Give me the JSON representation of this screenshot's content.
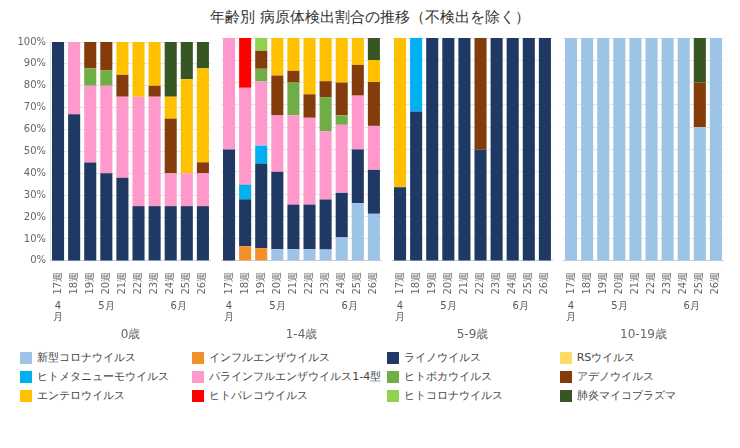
{
  "title": "年齢別 病原体検出割合の推移（不検出を除く）",
  "legend": "bottom",
  "chart_data": [
    {
      "type": "bar",
      "stacked": true,
      "grid": true,
      "x_label": "0歳",
      "categories": [
        "17週",
        "18週",
        "19週",
        "20週",
        "21週",
        "22週",
        "23週",
        "24週",
        "25週",
        "26週"
      ],
      "annotations": [
        {
          "text": "4\n月",
          "x": "17週"
        },
        {
          "text": "5月",
          "x": [
            "18週",
            "22週"
          ]
        },
        {
          "text": "6月",
          "x": [
            "23週",
            "26週"
          ]
        }
      ],
      "ylim": [
        0,
        100
      ],
      "yticks": [
        {
          "value": 0,
          "label": "0%"
        },
        {
          "value": 10,
          "label": "10%"
        },
        {
          "value": 20,
          "label": "20%"
        },
        {
          "value": 30,
          "label": "30%"
        },
        {
          "value": 40,
          "label": "40%"
        },
        {
          "value": 50,
          "label": "50%"
        },
        {
          "value": 60,
          "label": "60%"
        },
        {
          "value": 70,
          "label": "70%"
        },
        {
          "value": 80,
          "label": "80%"
        },
        {
          "value": 90,
          "label": "90%"
        },
        {
          "value": 100,
          "label": "100%"
        }
      ],
      "series": [
        {
          "name": "新型コロナウイルス",
          "color": "#9dc3e6",
          "values": [
            0,
            0,
            0,
            0,
            0,
            0,
            0,
            0,
            0,
            0
          ]
        },
        {
          "name": "インフルエンザウイルス",
          "color": "#f4902a",
          "values": [
            0,
            0,
            0,
            0,
            0,
            0,
            0,
            0,
            0,
            0
          ]
        },
        {
          "name": "ライノウイルス",
          "color": "#1f3864",
          "values": [
            100,
            67,
            45,
            40,
            38,
            25,
            25,
            25,
            25,
            25
          ]
        },
        {
          "name": "RSウイルス",
          "color": "#ffd966",
          "values": [
            0,
            0,
            0,
            0,
            0,
            0,
            0,
            0,
            0,
            0
          ]
        },
        {
          "name": "ヒトメタニューモウイルス",
          "color": "#00b0f0",
          "values": [
            0,
            0,
            0,
            0,
            0,
            0,
            0,
            0,
            0,
            0
          ]
        },
        {
          "name": "パラインフルエンザウイルス1-4型",
          "color": "#ff99cc",
          "values": [
            0,
            33,
            35,
            40,
            37,
            50,
            50,
            15,
            15,
            15
          ]
        },
        {
          "name": "ヒトボカウイルス",
          "color": "#70ad47",
          "values": [
            0,
            0,
            8,
            7,
            0,
            0,
            0,
            0,
            0,
            0
          ]
        },
        {
          "name": "アデノウイルス",
          "color": "#843c0c",
          "values": [
            0,
            0,
            12,
            13,
            10,
            0,
            5,
            25,
            0,
            5
          ]
        },
        {
          "name": "エンテロウイルス",
          "color": "#ffc000",
          "values": [
            0,
            0,
            0,
            0,
            15,
            25,
            20,
            10,
            43,
            43
          ]
        },
        {
          "name": "ヒトパレコウイルス",
          "color": "#ff0000",
          "values": [
            0,
            0,
            0,
            0,
            0,
            0,
            0,
            0,
            0,
            0
          ]
        },
        {
          "name": "ヒトコロナウイルス",
          "color": "#92d050",
          "values": [
            0,
            0,
            0,
            0,
            0,
            0,
            0,
            0,
            0,
            0
          ]
        },
        {
          "name": "肺炎マイコプラズマ",
          "color": "#375623",
          "values": [
            0,
            0,
            0,
            0,
            0,
            0,
            0,
            25,
            17,
            12
          ]
        }
      ]
    },
    {
      "type": "bar",
      "stacked": true,
      "grid": true,
      "x_label": "1-4歳",
      "tick_labels": "x",
      "categories": [
        "17週",
        "18週",
        "19週",
        "20週",
        "21週",
        "22週",
        "23週",
        "24週",
        "25週",
        "26週"
      ],
      "annotations": [
        {
          "text": "4\n月",
          "x": "17週"
        },
        {
          "text": "5月",
          "x": [
            "18週",
            "22週"
          ]
        },
        {
          "text": "6月",
          "x": [
            "23週",
            "26週"
          ]
        }
      ],
      "ylim": [
        0,
        100
      ],
      "yticks": [
        0,
        10,
        20,
        30,
        40,
        50,
        60,
        70,
        80,
        90,
        100
      ],
      "series": [
        {
          "name": "新型コロナウイルス",
          "color": "#9dc3e6",
          "values": [
            0,
            0,
            0,
            5.263,
            5.263,
            5.263,
            5.102,
            10.526,
            25.862,
            21.127
          ]
        },
        {
          "name": "インフルエンザウイルス",
          "color": "#f4902a",
          "values": [
            0,
            6.579,
            5.747,
            0,
            0,
            0,
            0,
            0,
            0,
            0
          ]
        },
        {
          "name": "ライノウイルス",
          "color": "#1f3864",
          "values": [
            50,
            21.053,
            37.931,
            34.737,
            20,
            20,
            22.449,
            20,
            24.138,
            19.718
          ]
        },
        {
          "name": "RSウイルス",
          "color": "#ffd966",
          "values": [
            0,
            0,
            0,
            0,
            0,
            0,
            0,
            0,
            0,
            0
          ]
        },
        {
          "name": "ヒトメタニューモウイルス",
          "color": "#00b0f0",
          "values": [
            0,
            6.579,
            8.046,
            0,
            0,
            0,
            0,
            0,
            0,
            0
          ]
        },
        {
          "name": "パラインフルエンザウイルス1-4型",
          "color": "#ff99cc",
          "values": [
            50,
            43.421,
            28.736,
            25.263,
            40,
            38.947,
            30.612,
            30.526,
            24.138,
            19.718
          ]
        },
        {
          "name": "ヒトボカウイルス",
          "color": "#70ad47",
          "values": [
            0,
            0,
            5.747,
            0,
            14.737,
            0,
            15.306,
            4.211,
            0,
            0
          ]
        },
        {
          "name": "アデノウイルス",
          "color": "#843c0c",
          "values": [
            0,
            0,
            8.046,
            17.895,
            5.263,
            10.526,
            7.143,
            14.737,
            13.793,
            19.718
          ]
        },
        {
          "name": "エンテロウイルス",
          "color": "#ffc000",
          "values": [
            0,
            0,
            0,
            16.842,
            14.737,
            25.263,
            19.388,
            20,
            12.069,
            9.859
          ]
        },
        {
          "name": "ヒトパレコウイルス",
          "color": "#ff0000",
          "values": [
            0,
            22.368,
            0,
            0,
            0,
            0,
            0,
            0,
            0,
            0
          ]
        },
        {
          "name": "ヒトコロナウイルス",
          "color": "#92d050",
          "values": [
            0,
            0,
            5.747,
            0,
            0,
            0,
            0,
            0,
            0,
            0
          ]
        },
        {
          "name": "肺炎マイコプラズマ",
          "color": "#375623",
          "values": [
            0,
            0,
            0,
            0,
            0,
            0,
            0,
            0,
            0,
            9.859
          ]
        }
      ]
    },
    {
      "type": "bar",
      "stacked": true,
      "grid": true,
      "x_label": "5-9歳",
      "tick_labels": "x",
      "categories": [
        "17週",
        "18週",
        "19週",
        "20週",
        "21週",
        "22週",
        "23週",
        "24週",
        "25週",
        "26週"
      ],
      "annotations": [
        {
          "text": "4\n月",
          "x": "17週"
        },
        {
          "text": "5月",
          "x": [
            "18週",
            "22週"
          ]
        },
        {
          "text": "6月",
          "x": [
            "23週",
            "26週"
          ]
        }
      ],
      "ylim": [
        0,
        100
      ],
      "yticks": [
        0,
        10,
        20,
        30,
        40,
        50,
        60,
        70,
        80,
        90,
        100
      ],
      "series": [
        {
          "name": "新型コロナウイルス",
          "color": "#9dc3e6",
          "values": [
            0,
            0,
            0,
            0,
            0,
            0,
            0,
            0,
            0,
            0
          ]
        },
        {
          "name": "インフルエンザウイルス",
          "color": "#f4902a",
          "values": [
            0,
            0,
            0,
            0,
            0,
            0,
            0,
            0,
            0,
            0
          ]
        },
        {
          "name": "ライノウイルス",
          "color": "#1f3864",
          "values": [
            33,
            67,
            100,
            100,
            100,
            50,
            100,
            100,
            100,
            100
          ]
        },
        {
          "name": "RSウイルス",
          "color": "#ffd966",
          "values": [
            0,
            0,
            0,
            0,
            0,
            0,
            0,
            0,
            0,
            0
          ]
        },
        {
          "name": "ヒトメタニューモウイルス",
          "color": "#00b0f0",
          "values": [
            0,
            33,
            0,
            0,
            0,
            0,
            0,
            0,
            0,
            0
          ]
        },
        {
          "name": "パラインフルエンザウイルス1-4型",
          "color": "#ff99cc",
          "values": [
            0,
            0,
            0,
            0,
            0,
            0,
            0,
            0,
            0,
            0
          ]
        },
        {
          "name": "ヒトボカウイルス",
          "color": "#70ad47",
          "values": [
            0,
            0,
            0,
            0,
            0,
            0,
            0,
            0,
            0,
            0
          ]
        },
        {
          "name": "アデノウイルス",
          "color": "#843c0c",
          "values": [
            0,
            0,
            0,
            0,
            0,
            50,
            0,
            0,
            0,
            0
          ]
        },
        {
          "name": "エンテロウイルス",
          "color": "#ffc000",
          "values": [
            67,
            0,
            0,
            0,
            0,
            0,
            0,
            0,
            0,
            0
          ]
        },
        {
          "name": "ヒトパレコウイルス",
          "color": "#ff0000",
          "values": [
            0,
            0,
            0,
            0,
            0,
            0,
            0,
            0,
            0,
            0
          ]
        },
        {
          "name": "ヒトコロナウイルス",
          "color": "#92d050",
          "values": [
            0,
            0,
            0,
            0,
            0,
            0,
            0,
            0,
            0,
            0
          ]
        },
        {
          "name": "肺炎マイコプラズマ",
          "color": "#375623",
          "values": [
            0,
            0,
            0,
            0,
            0,
            0,
            0,
            0,
            0,
            0
          ]
        }
      ]
    },
    {
      "type": "bar",
      "stacked": true,
      "grid": true,
      "x_label": "10-19歳",
      "tick_labels": "x",
      "categories": [
        "17週",
        "18週",
        "19週",
        "20週",
        "21週",
        "22週",
        "23週",
        "24週",
        "25週",
        "26週"
      ],
      "annotations": [
        {
          "text": "4\n月",
          "x": "17週"
        },
        {
          "text": "5月",
          "x": [
            "18週",
            "22週"
          ]
        },
        {
          "text": "6月",
          "x": [
            "23週",
            "26週"
          ]
        }
      ],
      "ylim": [
        0,
        100
      ],
      "yticks": [
        0,
        10,
        20,
        30,
        40,
        50,
        60,
        70,
        80,
        90,
        100
      ],
      "series": [
        {
          "name": "新型コロナウイルス",
          "color": "#9dc3e6",
          "values": [
            100,
            100,
            100,
            100,
            100,
            100,
            100,
            100,
            60,
            100
          ]
        },
        {
          "name": "インフルエンザウイルス",
          "color": "#f4902a",
          "values": [
            0,
            0,
            0,
            0,
            0,
            0,
            0,
            0,
            0,
            0
          ]
        },
        {
          "name": "ライノウイルス",
          "color": "#1f3864",
          "values": [
            0,
            0,
            0,
            0,
            0,
            0,
            0,
            0,
            0,
            0
          ]
        },
        {
          "name": "RSウイルス",
          "color": "#ffd966",
          "values": [
            0,
            0,
            0,
            0,
            0,
            0,
            0,
            0,
            0,
            0
          ]
        },
        {
          "name": "ヒトメタニューモウイルス",
          "color": "#00b0f0",
          "values": [
            0,
            0,
            0,
            0,
            0,
            0,
            0,
            0,
            0,
            0
          ]
        },
        {
          "name": "パラインフルエンザウイルス1-4型",
          "color": "#ff99cc",
          "values": [
            0,
            0,
            0,
            0,
            0,
            0,
            0,
            0,
            0,
            0
          ]
        },
        {
          "name": "ヒトボカウイルス",
          "color": "#70ad47",
          "values": [
            0,
            0,
            0,
            0,
            0,
            0,
            0,
            0,
            0,
            0
          ]
        },
        {
          "name": "アデノウイルス",
          "color": "#843c0c",
          "values": [
            0,
            0,
            0,
            0,
            0,
            0,
            0,
            0,
            20,
            0
          ]
        },
        {
          "name": "エンテロウイルス",
          "color": "#ffc000",
          "values": [
            0,
            0,
            0,
            0,
            0,
            0,
            0,
            0,
            0,
            0
          ]
        },
        {
          "name": "ヒトパレコウイルス",
          "color": "#ff0000",
          "values": [
            0,
            0,
            0,
            0,
            0,
            0,
            0,
            0,
            0,
            0
          ]
        },
        {
          "name": "ヒトコロナウイルス",
          "color": "#92d050",
          "values": [
            0,
            0,
            0,
            0,
            0,
            0,
            0,
            0,
            0,
            0
          ]
        },
        {
          "name": "肺炎マイコプラズマ",
          "color": "#375623",
          "values": [
            0,
            0,
            0,
            0,
            0,
            0,
            0,
            0,
            20,
            0
          ]
        }
      ]
    }
  ]
}
